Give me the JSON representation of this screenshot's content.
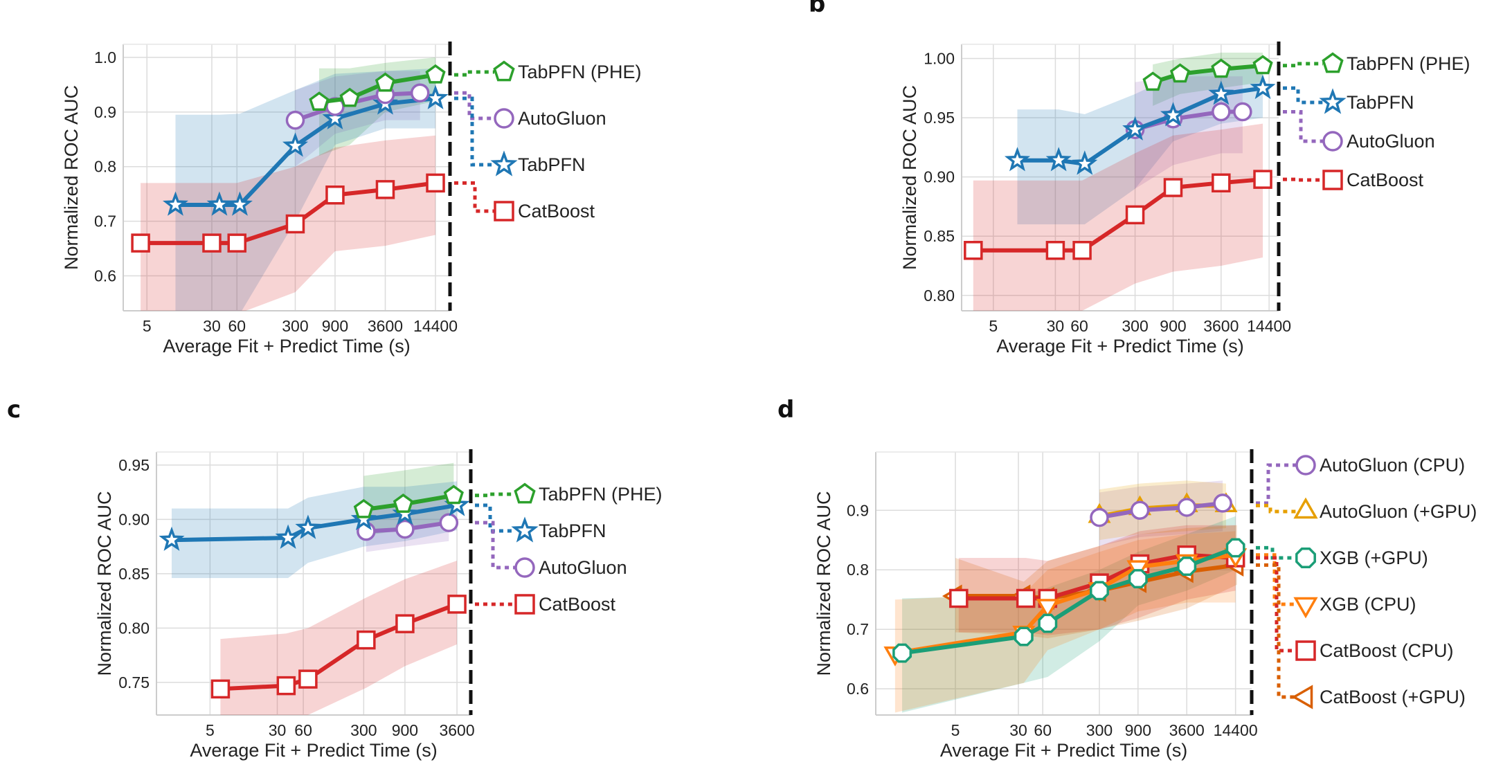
{
  "panel_labels": {
    "b": "b",
    "c": "c",
    "d": "d"
  },
  "chart_data": [
    {
      "id": "a",
      "type": "line",
      "xlabel": "Average Fit + Predict Time (s)",
      "ylabel": "Normalized ROC AUC",
      "xscale": "log",
      "xlim": [
        2.6,
        21500
      ],
      "ylim": [
        0.536,
        1.024
      ],
      "xticks": [
        [
          5,
          "5"
        ],
        [
          30,
          "30"
        ],
        [
          60,
          "60"
        ],
        [
          300,
          "300"
        ],
        [
          900,
          "900"
        ],
        [
          3600,
          "3600"
        ],
        [
          14400,
          "14400"
        ]
      ],
      "yticks": [
        [
          0.6,
          "0.6"
        ],
        [
          0.7,
          "0.7"
        ],
        [
          0.8,
          "0.8"
        ],
        [
          0.9,
          "0.9"
        ],
        [
          1.0,
          "1.0"
        ]
      ],
      "grid": true,
      "legend_placement": "right",
      "series": [
        {
          "name": "TabPFN (PHE)",
          "color": "#2ca02c",
          "marker": "pentagon",
          "x": [
            580,
            1350,
            3600,
            14400
          ],
          "y": [
            0.918,
            0.925,
            0.953,
            0.968
          ],
          "lo": [
            0.82,
            0.84,
            0.9,
            0.92
          ],
          "hi": [
            0.98,
            0.98,
            0.99,
            1.0
          ]
        },
        {
          "name": "AutoGluon",
          "color": "#9467bd",
          "marker": "circle",
          "x": [
            300,
            900,
            3600,
            9400
          ],
          "y": [
            0.885,
            0.91,
            0.932,
            0.935
          ],
          "lo": [
            0.8,
            0.86,
            0.885,
            0.885
          ],
          "hi": [
            0.94,
            0.965,
            0.975,
            0.975
          ]
        },
        {
          "name": "TabPFN",
          "color": "#1f77b4",
          "marker": "star",
          "x": [
            11,
            37,
            65,
            300,
            900,
            3600,
            14400
          ],
          "y": [
            0.73,
            0.73,
            0.73,
            0.838,
            0.888,
            0.915,
            0.925
          ],
          "lo": [
            0.53,
            0.53,
            0.53,
            0.7,
            0.84,
            0.87,
            0.87
          ],
          "hi": [
            0.895,
            0.895,
            0.897,
            0.94,
            0.97,
            0.975,
            0.98
          ]
        },
        {
          "name": "CatBoost",
          "color": "#d62728",
          "marker": "square",
          "x": [
            4.2,
            30,
            60,
            300,
            900,
            3600,
            14400
          ],
          "y": [
            0.66,
            0.66,
            0.66,
            0.695,
            0.748,
            0.758,
            0.77
          ],
          "lo": [
            0.53,
            0.53,
            0.53,
            0.57,
            0.645,
            0.655,
            0.675
          ],
          "hi": [
            0.77,
            0.77,
            0.77,
            0.8,
            0.835,
            0.848,
            0.857
          ]
        }
      ]
    },
    {
      "id": "b",
      "type": "line",
      "xlabel": "Average Fit + Predict Time (s)",
      "ylabel": "Normalized ROC AUC",
      "xscale": "log",
      "xlim": [
        2.0,
        19000
      ],
      "ylim": [
        0.787,
        1.012
      ],
      "xticks": [
        [
          5,
          "5"
        ],
        [
          30,
          "30"
        ],
        [
          60,
          "60"
        ],
        [
          300,
          "300"
        ],
        [
          900,
          "900"
        ],
        [
          3600,
          "3600"
        ],
        [
          14400,
          "14400"
        ]
      ],
      "yticks": [
        [
          0.8,
          "0.80"
        ],
        [
          0.85,
          "0.85"
        ],
        [
          0.9,
          "0.90"
        ],
        [
          0.95,
          "0.95"
        ],
        [
          1.0,
          "1.00"
        ]
      ],
      "grid": true,
      "legend_placement": "right",
      "series": [
        {
          "name": "TabPFN (PHE)",
          "color": "#2ca02c",
          "marker": "pentagon",
          "x": [
            500,
            1100,
            3600,
            12000
          ],
          "y": [
            0.98,
            0.987,
            0.991,
            0.994
          ],
          "lo": [
            0.96,
            0.97,
            0.975,
            0.98
          ],
          "hi": [
            0.995,
            1.0,
            1.005,
            1.005
          ]
        },
        {
          "name": "TabPFN",
          "color": "#1f77b4",
          "marker": "star",
          "x": [
            10,
            33,
            70,
            300,
            900,
            3600,
            12000
          ],
          "y": [
            0.914,
            0.914,
            0.911,
            0.94,
            0.952,
            0.97,
            0.975
          ],
          "lo": [
            0.86,
            0.86,
            0.86,
            0.89,
            0.93,
            0.945,
            0.95
          ],
          "hi": [
            0.957,
            0.957,
            0.953,
            0.97,
            0.985,
            0.99,
            0.995
          ]
        },
        {
          "name": "AutoGluon",
          "color": "#9467bd",
          "marker": "circle",
          "x": [
            300,
            900,
            3600,
            6700
          ],
          "y": [
            0.94,
            0.949,
            0.955,
            0.955
          ],
          "lo": [
            0.89,
            0.91,
            0.92,
            0.92
          ],
          "hi": [
            0.98,
            0.985,
            0.985,
            0.985
          ]
        },
        {
          "name": "CatBoost",
          "color": "#d62728",
          "marker": "square",
          "x": [
            2.8,
            30,
            65,
            300,
            900,
            3600,
            12000
          ],
          "y": [
            0.838,
            0.838,
            0.838,
            0.868,
            0.891,
            0.895,
            0.898
          ],
          "lo": [
            0.787,
            0.787,
            0.787,
            0.81,
            0.82,
            0.825,
            0.832
          ],
          "hi": [
            0.897,
            0.897,
            0.897,
            0.92,
            0.935,
            0.94,
            0.945
          ]
        }
      ]
    },
    {
      "id": "c",
      "type": "line",
      "xlabel": "Average Fit + Predict Time (s)",
      "ylabel": "Normalized ROC AUC",
      "xscale": "log",
      "xlim": [
        1.2,
        5200
      ],
      "ylim": [
        0.72,
        0.962
      ],
      "xticks": [
        [
          5,
          "5"
        ],
        [
          30,
          "30"
        ],
        [
          60,
          "60"
        ],
        [
          300,
          "300"
        ],
        [
          900,
          "900"
        ],
        [
          3600,
          "3600"
        ]
      ],
      "yticks": [
        [
          0.75,
          "0.75"
        ],
        [
          0.8,
          "0.80"
        ],
        [
          0.85,
          "0.85"
        ],
        [
          0.9,
          "0.90"
        ],
        [
          0.95,
          "0.95"
        ]
      ],
      "grid": true,
      "legend_placement": "right",
      "series": [
        {
          "name": "TabPFN (PHE)",
          "color": "#2ca02c",
          "marker": "pentagon",
          "x": [
            300,
            860,
            3300
          ],
          "y": [
            0.909,
            0.914,
            0.922
          ],
          "lo": [
            0.885,
            0.89,
            0.9
          ],
          "hi": [
            0.94,
            0.945,
            0.952
          ]
        },
        {
          "name": "TabPFN",
          "color": "#1f77b4",
          "marker": "star",
          "x": [
            1.8,
            40,
            68,
            300,
            900,
            3600
          ],
          "y": [
            0.881,
            0.883,
            0.892,
            0.9,
            0.905,
            0.913
          ],
          "lo": [
            0.846,
            0.846,
            0.86,
            0.875,
            0.88,
            0.89
          ],
          "hi": [
            0.91,
            0.91,
            0.92,
            0.93,
            0.93,
            0.935
          ]
        },
        {
          "name": "AutoGluon",
          "color": "#9467bd",
          "marker": "circle",
          "x": [
            320,
            900,
            2900
          ],
          "y": [
            0.889,
            0.891,
            0.897
          ],
          "lo": [
            0.87,
            0.875,
            0.88
          ],
          "hi": [
            0.91,
            0.915,
            0.92
          ]
        },
        {
          "name": "CatBoost",
          "color": "#d62728",
          "marker": "square",
          "x": [
            6.6,
            38,
            68,
            320,
            900,
            3600
          ],
          "y": [
            0.744,
            0.747,
            0.753,
            0.789,
            0.804,
            0.822
          ],
          "lo": [
            0.72,
            0.72,
            0.72,
            0.745,
            0.765,
            0.785
          ],
          "hi": [
            0.79,
            0.795,
            0.8,
            0.828,
            0.845,
            0.862
          ]
        }
      ]
    },
    {
      "id": "d",
      "type": "line",
      "xlabel": "Average Fit + Predict Time (s)",
      "ylabel": "Normalized ROC AUC",
      "xscale": "log",
      "xlim": [
        0.52,
        22800
      ],
      "ylim": [
        0.556,
        0.998
      ],
      "xticks": [
        [
          5,
          "5"
        ],
        [
          30,
          "30"
        ],
        [
          60,
          "60"
        ],
        [
          300,
          "300"
        ],
        [
          900,
          "900"
        ],
        [
          3600,
          "3600"
        ],
        [
          14400,
          "14400"
        ]
      ],
      "yticks": [
        [
          0.6,
          "0.6"
        ],
        [
          0.7,
          "0.7"
        ],
        [
          0.8,
          "0.8"
        ],
        [
          0.9,
          "0.9"
        ]
      ],
      "grid": true,
      "legend_placement": "right",
      "series": [
        {
          "name": "AutoGluon (CPU)",
          "color": "#9467bd",
          "marker": "circle",
          "x": [
            300,
            950,
            3600,
            10000
          ],
          "y": [
            0.888,
            0.9,
            0.905,
            0.912
          ],
          "lo": [
            0.84,
            0.855,
            0.86,
            0.865
          ],
          "hi": [
            0.93,
            0.94,
            0.945,
            0.95
          ]
        },
        {
          "name": "AutoGluon (+GPU)",
          "color": "#e69f00",
          "marker": "triangle-up",
          "x": [
            300,
            950,
            3600,
            11000
          ],
          "y": [
            0.89,
            0.903,
            0.908,
            0.908
          ],
          "lo": [
            0.85,
            0.86,
            0.865,
            0.87
          ],
          "hi": [
            0.935,
            0.945,
            0.95,
            0.945
          ]
        },
        {
          "name": "XGB (+GPU)",
          "color": "#1b9e77",
          "marker": "hexagon",
          "x": [
            1.1,
            35,
            69,
            300,
            900,
            3600,
            14400
          ],
          "y": [
            0.66,
            0.688,
            0.71,
            0.765,
            0.785,
            0.806,
            0.837
          ],
          "lo": [
            0.56,
            0.61,
            0.62,
            0.68,
            0.74,
            0.765,
            0.8
          ],
          "hi": [
            0.752,
            0.757,
            0.77,
            0.8,
            0.83,
            0.86,
            0.89
          ]
        },
        {
          "name": "XGB (CPU)",
          "color": "#ff7f0e",
          "marker": "triangle-down",
          "x": [
            0.9,
            35,
            69,
            300,
            900,
            3600,
            14400
          ],
          "y": [
            0.66,
            0.695,
            0.74,
            0.768,
            0.805,
            0.815,
            0.825
          ],
          "lo": [
            0.56,
            0.61,
            0.665,
            0.7,
            0.73,
            0.745,
            0.745
          ],
          "hi": [
            0.75,
            0.76,
            0.8,
            0.83,
            0.85,
            0.86,
            0.865
          ]
        },
        {
          "name": "CatBoost (CPU)",
          "color": "#d62728",
          "marker": "square",
          "x": [
            5.5,
            37,
            69,
            300,
            950,
            3600,
            14400
          ],
          "y": [
            0.752,
            0.752,
            0.752,
            0.778,
            0.81,
            0.825,
            0.82
          ],
          "lo": [
            0.695,
            0.695,
            0.69,
            0.7,
            0.72,
            0.75,
            0.765
          ],
          "hi": [
            0.82,
            0.82,
            0.815,
            0.84,
            0.865,
            0.875,
            0.875
          ]
        },
        {
          "name": "CatBoost (+GPU)",
          "color": "#d95f02",
          "marker": "triangle-left",
          "x": [
            5,
            35,
            69,
            300,
            950,
            3600,
            15000
          ],
          "y": [
            0.756,
            0.756,
            0.752,
            0.765,
            0.78,
            0.797,
            0.808
          ],
          "lo": [
            0.695,
            0.69,
            0.685,
            0.7,
            0.715,
            0.735,
            0.775
          ],
          "hi": [
            0.82,
            0.78,
            0.815,
            0.84,
            0.86,
            0.87,
            0.875
          ]
        }
      ]
    }
  ]
}
